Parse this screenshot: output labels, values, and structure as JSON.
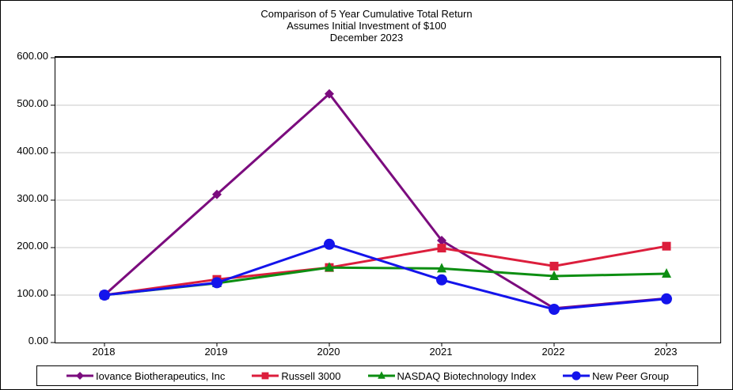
{
  "title": {
    "line1": "Comparison of 5 Year Cumulative Total Return",
    "line2": "Assumes Initial Investment of $100",
    "line3": "December 2023"
  },
  "chart_data": {
    "type": "line",
    "categories": [
      "2018",
      "2019",
      "2020",
      "2021",
      "2022",
      "2023"
    ],
    "series": [
      {
        "name": "Iovance Biotherapeutics, Inc",
        "color": "#7B0C7E",
        "marker": "diamond",
        "values": [
          100,
          312,
          524,
          215,
          72,
          93
        ]
      },
      {
        "name": "Russell 3000",
        "color": "#DC1E3C",
        "marker": "square",
        "values": [
          100,
          133,
          158,
          199,
          161,
          203
        ]
      },
      {
        "name": "NASDAQ Biotechnology Index",
        "color": "#0D8E12",
        "marker": "triangle",
        "values": [
          100,
          125,
          158,
          156,
          140,
          145
        ]
      },
      {
        "name": "New Peer Group",
        "color": "#1414EB",
        "marker": "circle",
        "values": [
          100,
          126,
          207,
          132,
          70,
          92
        ]
      }
    ],
    "ylim": [
      0,
      600
    ],
    "ytick_labels": [
      "600.00",
      "500.00",
      "400.00",
      "300.00",
      "200.00",
      "100.00",
      "0.00"
    ],
    "grid": true,
    "gridline_color": "#C9C9C9",
    "legend_position": "bottom"
  }
}
